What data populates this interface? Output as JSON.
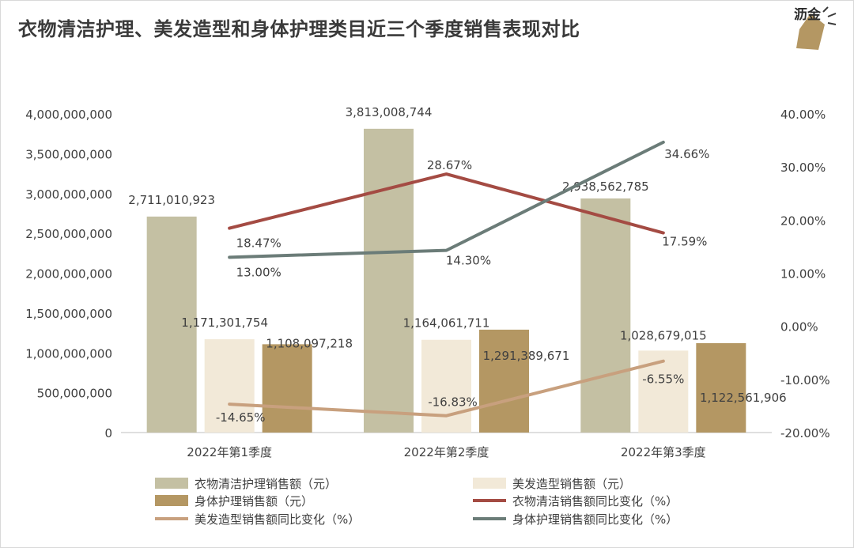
{
  "chart_data": {
    "type": "bar",
    "title": "衣物清洁护理、美发造型和身体护理类目近三个季度销售表现对比",
    "categories": [
      "2022年第1季度",
      "2022年第2季度",
      "2022年第3季度"
    ],
    "y_left": {
      "min": 0,
      "max": 4000000000,
      "step": 500000000,
      "tick_labels": [
        "0",
        "500,000,000",
        "1,000,000,000",
        "1,500,000,000",
        "2,000,000,000",
        "2,500,000,000",
        "3,000,000,000",
        "3,500,000,000",
        "4,000,000,000"
      ]
    },
    "y_right": {
      "min": -20,
      "max": 40,
      "step": 10,
      "tick_labels": [
        "-20.00%",
        "-10.00%",
        "0.00%",
        "10.00%",
        "20.00%",
        "30.00%",
        "40.00%"
      ]
    },
    "grid": false,
    "legend_position": "bottom",
    "bar_series": [
      {
        "name": "衣物清洁护理销售额（元）",
        "color": "#c4c0a3",
        "values": [
          2711010923,
          3813008744,
          2938562785
        ],
        "labels": [
          "2,711,010,923",
          "3,813,008,744",
          "2,938,562,785"
        ]
      },
      {
        "name": "美发造型销售额（元）",
        "color": "#f2e9d8",
        "values": [
          1171301754,
          1164061711,
          1028679015
        ],
        "labels": [
          "1,171,301,754",
          "1,164,061,711",
          "1,028,679,015"
        ]
      },
      {
        "name": "身体护理销售额（元）",
        "color": "#b49763",
        "values": [
          1108097218,
          1291389671,
          1122561906
        ],
        "labels": [
          "1,108,097,218",
          "1,291,389,671",
          "1,122,561,906"
        ]
      }
    ],
    "line_series": [
      {
        "name": "衣物清洁销售额同比变化（%）",
        "color": "#a44b43",
        "values": [
          18.47,
          28.67,
          17.59
        ],
        "labels": [
          "18.47%",
          "28.67%",
          "17.59%"
        ]
      },
      {
        "name": "美发造型销售额同比变化（%）",
        "color": "#c8a07e",
        "values": [
          -14.65,
          -16.83,
          -6.55
        ],
        "labels": [
          "-14.65%",
          "-16.83%",
          "-6.55%"
        ]
      },
      {
        "name": "身体护理销售额同比变化（%）",
        "color": "#6b7c78",
        "values": [
          13.0,
          14.3,
          34.66
        ],
        "labels": [
          "13.00%",
          "14.30%",
          "34.66%"
        ]
      }
    ],
    "legend_order": [
      {
        "kind": "bar",
        "index": 0
      },
      {
        "kind": "bar",
        "index": 1
      },
      {
        "kind": "bar",
        "index": 2
      },
      {
        "kind": "line",
        "index": 0
      },
      {
        "kind": "line",
        "index": 1
      },
      {
        "kind": "line",
        "index": 2
      }
    ]
  },
  "logo": {
    "text": "沥金",
    "color": "#b49763"
  }
}
